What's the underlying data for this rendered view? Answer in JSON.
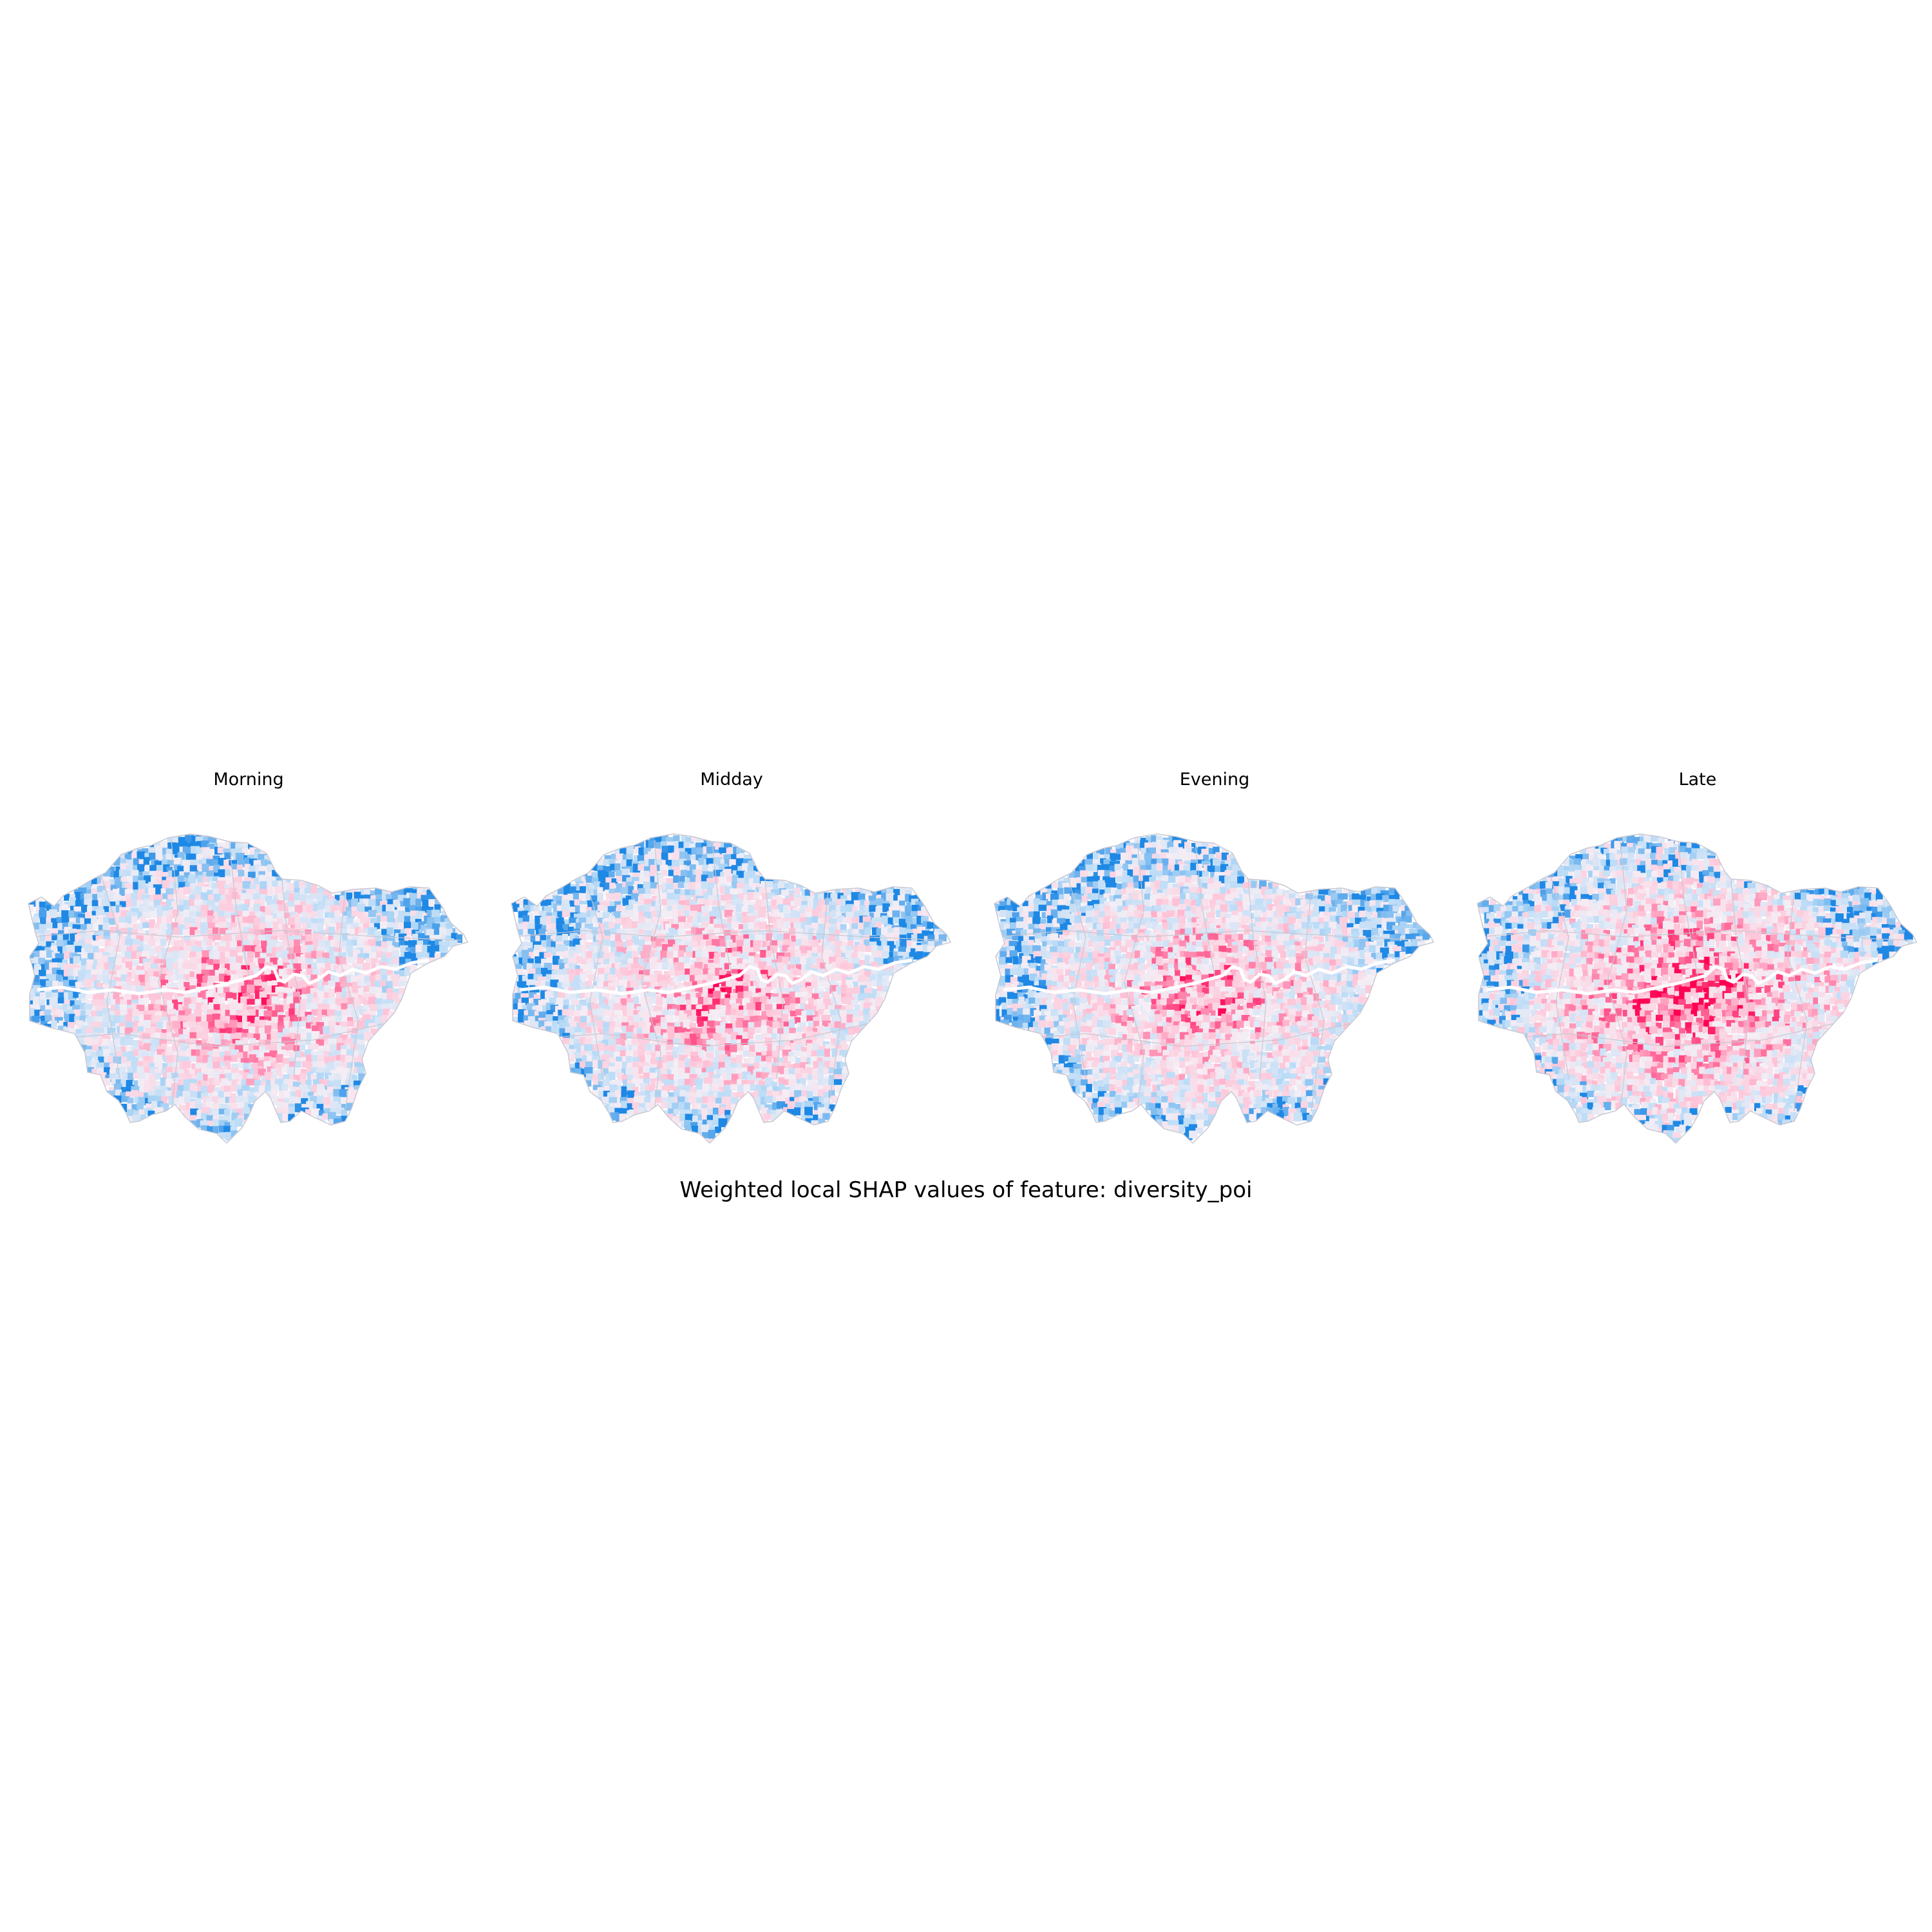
{
  "figure": {
    "suptitle": "Weighted local SHAP values of feature: diversity_poi",
    "colors": {
      "negative_strong": "#1e88e5",
      "negative_light": "#bbdcf7",
      "neutral": "#f5eef5",
      "positive_light": "#ffc2d6",
      "positive_strong": "#ff0052",
      "boundary": "#c8c8d2",
      "river": "#ffffff"
    },
    "panels": [
      {
        "title": "Morning",
        "seed": 11,
        "pink_bias": 0.55
      },
      {
        "title": "Midday",
        "seed": 23,
        "pink_bias": 0.55
      },
      {
        "title": "Evening",
        "seed": 37,
        "pink_bias": 0.55
      },
      {
        "title": "Late",
        "seed": 53,
        "pink_bias": 0.68
      }
    ]
  }
}
